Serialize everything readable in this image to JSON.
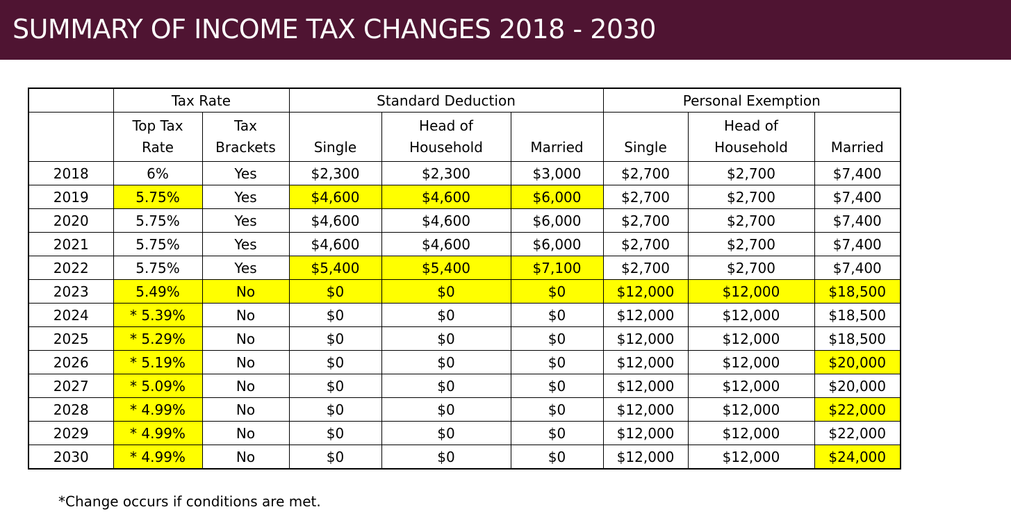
{
  "title": "SUMMARY OF INCOME TAX CHANGES 2018 - 2030",
  "colors": {
    "title_bar": "#4f1432",
    "title_text": "#ffffff",
    "highlight": "#ffff00"
  },
  "table": {
    "groups": {
      "tax_rate": "Tax Rate",
      "standard_deduction": "Standard Deduction",
      "personal_exemption": "Personal Exemption"
    },
    "subheaders": {
      "top_tax_rate": [
        "Top Tax",
        "Rate"
      ],
      "tax_brackets": [
        "Tax",
        "Brackets"
      ],
      "sd_single": "Single",
      "sd_hoh": [
        "Head of",
        "Household"
      ],
      "sd_married": "Married",
      "pe_single": "Single",
      "pe_hoh": [
        "Head of",
        "Household"
      ],
      "pe_married": "Married"
    },
    "rows": [
      {
        "year": "2018",
        "cells": [
          "6%",
          "Yes",
          "$2,300",
          "$2,300",
          "$3,000",
          "$2,700",
          "$2,700",
          "$7,400"
        ],
        "highlight": [
          false,
          false,
          false,
          false,
          false,
          false,
          false,
          false
        ]
      },
      {
        "year": "2019",
        "cells": [
          "5.75%",
          "Yes",
          "$4,600",
          "$4,600",
          "$6,000",
          "$2,700",
          "$2,700",
          "$7,400"
        ],
        "highlight": [
          true,
          false,
          true,
          true,
          true,
          false,
          false,
          false
        ]
      },
      {
        "year": "2020",
        "cells": [
          "5.75%",
          "Yes",
          "$4,600",
          "$4,600",
          "$6,000",
          "$2,700",
          "$2,700",
          "$7,400"
        ],
        "highlight": [
          false,
          false,
          false,
          false,
          false,
          false,
          false,
          false
        ]
      },
      {
        "year": "2021",
        "cells": [
          "5.75%",
          "Yes",
          "$4,600",
          "$4,600",
          "$6,000",
          "$2,700",
          "$2,700",
          "$7,400"
        ],
        "highlight": [
          false,
          false,
          false,
          false,
          false,
          false,
          false,
          false
        ]
      },
      {
        "year": "2022",
        "cells": [
          "5.75%",
          "Yes",
          "$5,400",
          "$5,400",
          "$7,100",
          "$2,700",
          "$2,700",
          "$7,400"
        ],
        "highlight": [
          false,
          false,
          true,
          true,
          true,
          false,
          false,
          false
        ]
      },
      {
        "year": "2023",
        "cells": [
          "5.49%",
          "No",
          "$0",
          "$0",
          "$0",
          "$12,000",
          "$12,000",
          "$18,500"
        ],
        "highlight": [
          true,
          true,
          true,
          true,
          true,
          true,
          true,
          true
        ]
      },
      {
        "year": "2024",
        "cells": [
          "* 5.39%",
          "No",
          "$0",
          "$0",
          "$0",
          "$12,000",
          "$12,000",
          "$18,500"
        ],
        "highlight": [
          true,
          false,
          false,
          false,
          false,
          false,
          false,
          false
        ]
      },
      {
        "year": "2025",
        "cells": [
          "* 5.29%",
          "No",
          "$0",
          "$0",
          "$0",
          "$12,000",
          "$12,000",
          "$18,500"
        ],
        "highlight": [
          true,
          false,
          false,
          false,
          false,
          false,
          false,
          false
        ]
      },
      {
        "year": "2026",
        "cells": [
          "* 5.19%",
          "No",
          "$0",
          "$0",
          "$0",
          "$12,000",
          "$12,000",
          "$20,000"
        ],
        "highlight": [
          true,
          false,
          false,
          false,
          false,
          false,
          false,
          true
        ]
      },
      {
        "year": "2027",
        "cells": [
          "* 5.09%",
          "No",
          "$0",
          "$0",
          "$0",
          "$12,000",
          "$12,000",
          "$20,000"
        ],
        "highlight": [
          true,
          false,
          false,
          false,
          false,
          false,
          false,
          false
        ]
      },
      {
        "year": "2028",
        "cells": [
          "* 4.99%",
          "No",
          "$0",
          "$0",
          "$0",
          "$12,000",
          "$12,000",
          "$22,000"
        ],
        "highlight": [
          true,
          false,
          false,
          false,
          false,
          false,
          false,
          true
        ]
      },
      {
        "year": "2029",
        "cells": [
          "* 4.99%",
          "No",
          "$0",
          "$0",
          "$0",
          "$12,000",
          "$12,000",
          "$22,000"
        ],
        "highlight": [
          true,
          false,
          false,
          false,
          false,
          false,
          false,
          false
        ]
      },
      {
        "year": "2030",
        "cells": [
          "* 4.99%",
          "No",
          "$0",
          "$0",
          "$0",
          "$12,000",
          "$12,000",
          "$24,000"
        ],
        "highlight": [
          true,
          false,
          false,
          false,
          false,
          false,
          false,
          true
        ]
      }
    ]
  },
  "footnote": "*Change occurs if conditions are met."
}
